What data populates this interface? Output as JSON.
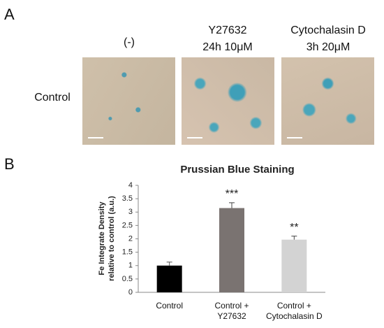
{
  "panel_a": {
    "label": "A",
    "row_label": "Control",
    "columns": [
      "(-)",
      "Y27632\n24h 10μM",
      "Cytochalasin D\n3h 20μM"
    ]
  },
  "panel_b": {
    "label": "B"
  },
  "chart_data": {
    "type": "bar",
    "title": "Prussian Blue Staining",
    "y_label": [
      "Fe Integrate Density",
      "relative to control  (a.u.)"
    ],
    "categories": [
      "Control",
      "Control +\nY27632",
      "Control +\nCytochalasin D"
    ],
    "values": [
      1.0,
      3.15,
      1.97
    ],
    "errors": [
      0.13,
      0.2,
      0.13
    ],
    "significance": [
      null,
      "***",
      "**"
    ],
    "colors": [
      "#000000",
      "#7a7371",
      "#d3d3d3"
    ],
    "ylim": [
      0,
      4
    ],
    "yticks": [
      0,
      0.5,
      1,
      1.5,
      2,
      2.5,
      3,
      3.5,
      4
    ]
  }
}
